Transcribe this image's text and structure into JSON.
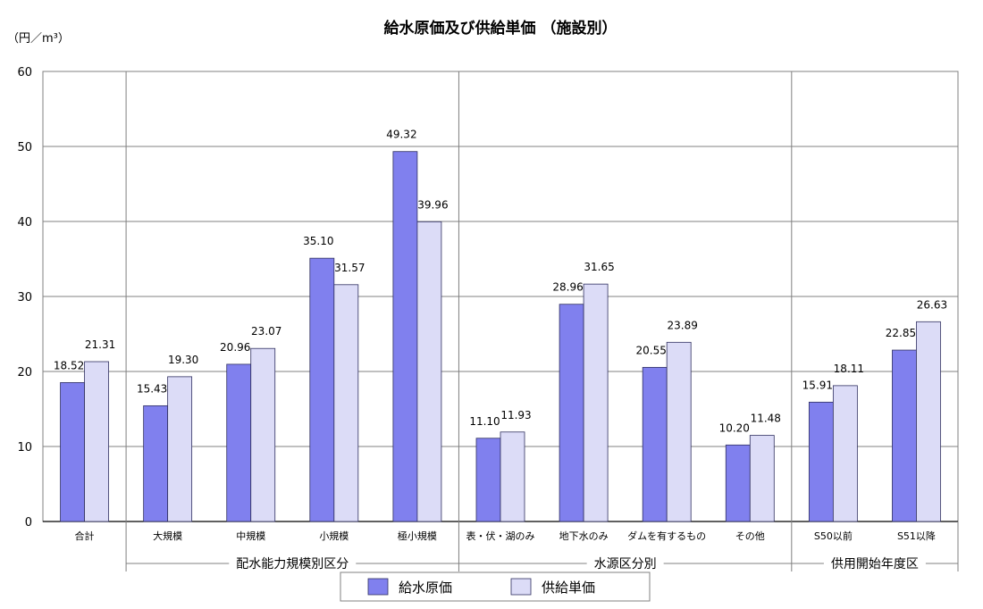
{
  "chart_data": {
    "type": "bar",
    "title": "給水原価及び供給単価 （施設別）",
    "ylabel": "（円／m³）",
    "ylim": [
      0,
      60
    ],
    "yticks": [
      0,
      10,
      20,
      30,
      40,
      50,
      60
    ],
    "grid": true,
    "legend_position": "bottom-center",
    "categories": [
      "合計",
      "大規模",
      "中規模",
      "小規模",
      "極小規模",
      "表・伏・湖のみ",
      "地下水のみ",
      "ダムを有するもの",
      "その他",
      "S50以前",
      "S51以降"
    ],
    "groups": [
      {
        "label": "配水能力規模別区分",
        "categories": [
          "大規模",
          "中規模",
          "小規模",
          "極小規模"
        ]
      },
      {
        "label": "水源区分別",
        "categories": [
          "表・伏・湖のみ",
          "地下水のみ",
          "ダムを有するもの",
          "その他"
        ]
      },
      {
        "label": "供用開始年度区",
        "categories": [
          "S50以前",
          "S51以降"
        ]
      }
    ],
    "series": [
      {
        "name": "給水原価",
        "color": "#8080ee",
        "values": [
          18.52,
          15.43,
          20.96,
          35.1,
          49.32,
          11.1,
          28.96,
          20.55,
          10.2,
          15.91,
          22.85
        ]
      },
      {
        "name": "供給単価",
        "color": "#dcdcf7",
        "values": [
          21.31,
          19.3,
          23.07,
          31.57,
          39.96,
          11.93,
          31.65,
          23.89,
          11.48,
          18.11,
          26.63
        ]
      }
    ]
  }
}
